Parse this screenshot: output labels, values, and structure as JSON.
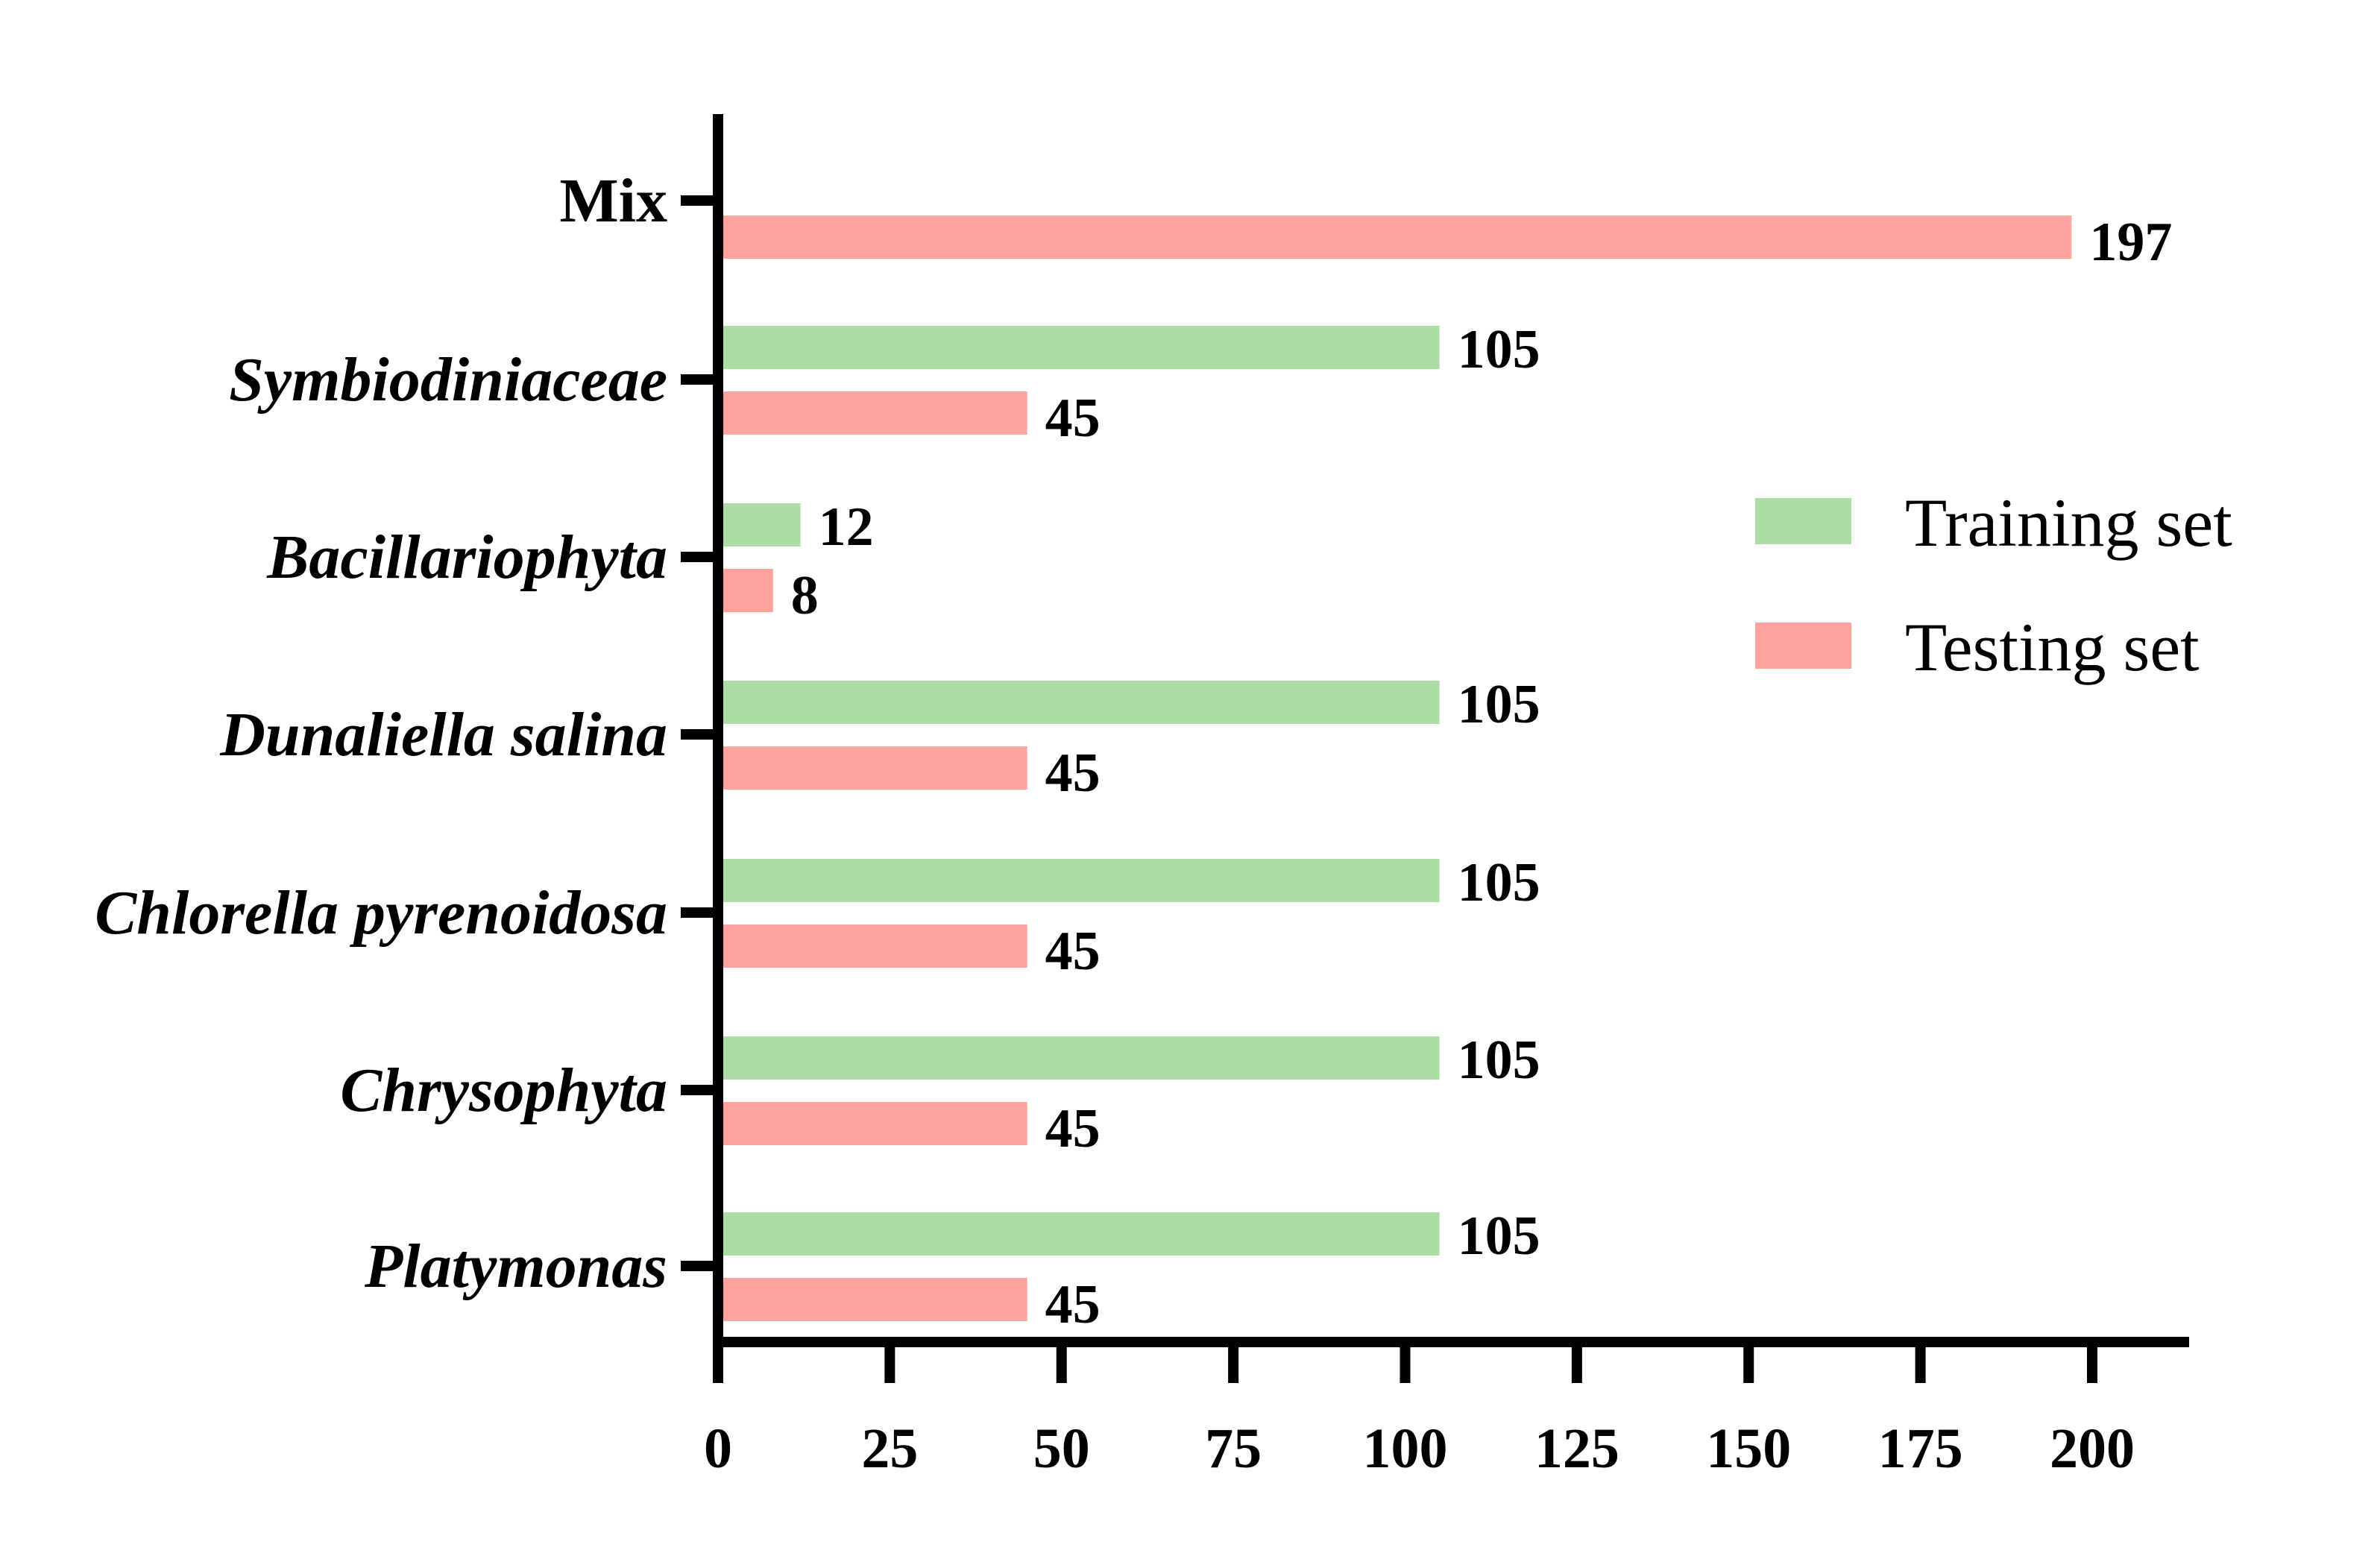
{
  "chart_data": {
    "type": "bar",
    "orientation": "horizontal",
    "title": "",
    "xlabel": "",
    "ylabel": "",
    "xlim": [
      0,
      200
    ],
    "x_ticks": [
      0,
      25,
      50,
      75,
      100,
      125,
      150,
      175,
      200
    ],
    "grid": false,
    "legend_position": "right-center",
    "categories": [
      "Mix",
      "Symbiodiniaceae",
      "Bacillariophyta",
      "Dunaliella salina",
      "Chlorella pyrenoidosa",
      "Chrysophyta",
      "Platymonas"
    ],
    "category_italic": [
      false,
      true,
      true,
      true,
      true,
      true,
      true
    ],
    "series": [
      {
        "name": "Training set",
        "color": "#abdda5",
        "values": [
          null,
          105,
          12,
          105,
          105,
          105,
          105
        ]
      },
      {
        "name": "Testing set",
        "color": "#ffa39e",
        "values": [
          197,
          45,
          8,
          45,
          45,
          45,
          45
        ]
      }
    ]
  },
  "legend": {
    "items": [
      {
        "label": "Training set",
        "color": "#abdda5"
      },
      {
        "label": "Testing set",
        "color": "#ffa39e"
      }
    ]
  },
  "axis": {
    "tick_labels": [
      "0",
      "25",
      "50",
      "75",
      "100",
      "125",
      "150",
      "175",
      "200"
    ]
  }
}
